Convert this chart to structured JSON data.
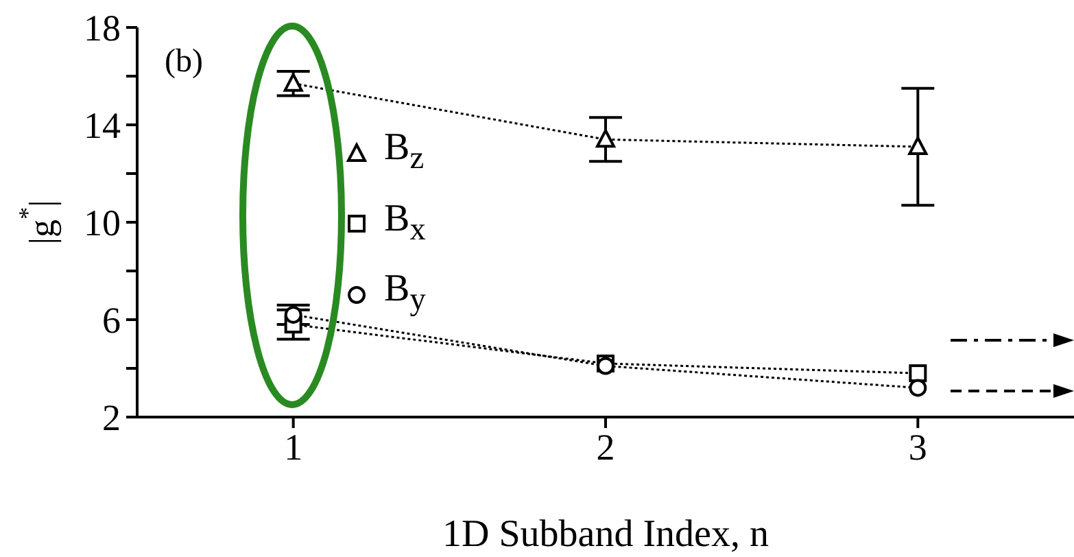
{
  "chart_data": {
    "type": "line",
    "xlabel": "1D Subband Index, n",
    "ylabel": "|g$^{*}$|",
    "annotations": [
      "(b)"
    ],
    "x": [
      1,
      2,
      3
    ],
    "xlim": [
      0.5,
      3.5
    ],
    "xticks": [
      1,
      2,
      3
    ],
    "ylim": [
      2,
      18
    ],
    "yticks": [
      2,
      {
        "value": 4,
        "label": null
      },
      6,
      {
        "value": 8,
        "label": null
      },
      10,
      {
        "value": 12,
        "label": null
      },
      14,
      {
        "value": 16,
        "label": null
      },
      18
    ],
    "series": [
      {
        "name": "B$_{z}$",
        "color": "#000000",
        "marker": "triangle",
        "values": [
          15.7,
          13.4,
          13.1
        ],
        "errors": [
          0.5,
          0.9,
          2.4
        ]
      },
      {
        "name": "B$_{x}$",
        "color": "#000000",
        "marker": "square",
        "values": [
          5.8,
          4.2,
          3.8
        ],
        "errors": [
          0.6,
          null,
          null
        ]
      },
      {
        "name": "B$_{y}$",
        "color": "#000000",
        "marker": "circle",
        "values": [
          6.2,
          4.1,
          3.2
        ],
        "errors": [
          0.4,
          null,
          null
        ]
      }
    ],
    "line_style": "dotted",
    "legend": "left"
  }
}
